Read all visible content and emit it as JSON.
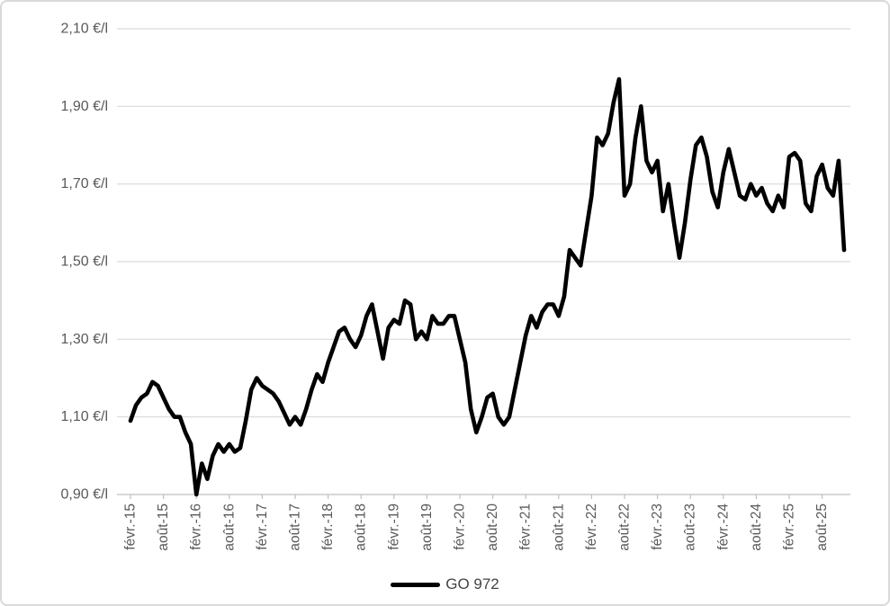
{
  "chart_data": {
    "type": "line",
    "title": "",
    "legend": "GO 972",
    "unit": "€/l",
    "frequency": "monthly",
    "points_start": "févr.-15",
    "points_end": "déc.-25",
    "grid": true,
    "legend_position": "bottom-center",
    "y_axis": {
      "min": 0.9,
      "max": 2.1,
      "step": 0.2,
      "ticks": [
        {
          "label": "2,10 €/l",
          "value": 2.1
        },
        {
          "label": "1,90 €/l",
          "value": 1.9
        },
        {
          "label": "1,70 €/l",
          "value": 1.7
        },
        {
          "label": "1,50 €/l",
          "value": 1.5
        },
        {
          "label": "1,30 €/l",
          "value": 1.3
        },
        {
          "label": "1,10 €/l",
          "value": 1.1
        },
        {
          "label": "0,90 €/l",
          "value": 0.9
        }
      ]
    },
    "x_axis": {
      "tick_interval_months": 6,
      "tick_labels": [
        "févr.-15",
        "août-15",
        "févr.-16",
        "août-16",
        "févr.-17",
        "août-17",
        "févr.-18",
        "août-18",
        "févr.-19",
        "août-19",
        "févr.-20",
        "août-20",
        "févr.-21",
        "août-21",
        "févr.-22",
        "août-22",
        "févr.-23",
        "août-23",
        "févr.-24",
        "août-24",
        "févr.-25",
        "août-25"
      ]
    },
    "series": [
      {
        "name": "GO 972",
        "color": "#000000",
        "values": [
          1.09,
          1.13,
          1.15,
          1.16,
          1.19,
          1.18,
          1.15,
          1.12,
          1.1,
          1.1,
          1.06,
          1.03,
          0.9,
          0.98,
          0.94,
          1.0,
          1.03,
          1.01,
          1.03,
          1.01,
          1.02,
          1.09,
          1.17,
          1.2,
          1.18,
          1.17,
          1.16,
          1.14,
          1.11,
          1.08,
          1.1,
          1.08,
          1.12,
          1.17,
          1.21,
          1.19,
          1.24,
          1.28,
          1.32,
          1.33,
          1.3,
          1.28,
          1.31,
          1.36,
          1.39,
          1.32,
          1.25,
          1.33,
          1.35,
          1.34,
          1.4,
          1.39,
          1.3,
          1.32,
          1.3,
          1.36,
          1.34,
          1.34,
          1.36,
          1.36,
          1.3,
          1.24,
          1.12,
          1.06,
          1.1,
          1.15,
          1.16,
          1.1,
          1.08,
          1.1,
          1.17,
          1.24,
          1.31,
          1.36,
          1.33,
          1.37,
          1.39,
          1.39,
          1.36,
          1.41,
          1.53,
          1.51,
          1.49,
          1.58,
          1.67,
          1.82,
          1.8,
          1.83,
          1.91,
          1.97,
          1.67,
          1.7,
          1.82,
          1.9,
          1.76,
          1.73,
          1.76,
          1.63,
          1.7,
          1.6,
          1.51,
          1.6,
          1.71,
          1.8,
          1.82,
          1.77,
          1.68,
          1.64,
          1.73,
          1.79,
          1.73,
          1.67,
          1.66,
          1.7,
          1.67,
          1.69,
          1.65,
          1.63,
          1.67,
          1.64,
          1.77,
          1.78,
          1.76,
          1.65,
          1.63,
          1.72,
          1.75,
          1.69,
          1.67,
          1.76,
          1.53
        ]
      }
    ],
    "colors": {
      "line": "#000000",
      "grid": "#d9d9d9",
      "axis": "#bfbfbf",
      "tick_label": "#595959",
      "legend_text": "#444444",
      "background": "#ffffff",
      "border": "#d9d9d9"
    }
  }
}
